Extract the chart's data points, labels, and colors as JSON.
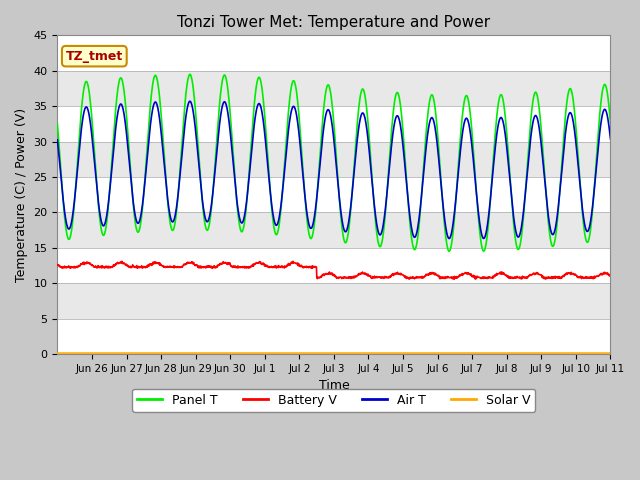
{
  "title": "Tonzi Tower Met: Temperature and Power",
  "xlabel": "Time",
  "ylabel": "Temperature (C) / Power (V)",
  "ylim": [
    0,
    45
  ],
  "label_box_text": "TZ_tmet",
  "legend": [
    "Panel T",
    "Battery V",
    "Air T",
    "Solar V"
  ],
  "legend_colors": [
    "#00ee00",
    "#ff0000",
    "#0000cc",
    "#ffaa00"
  ],
  "xtick_labels": [
    "Jun 26",
    "Jun 27",
    "Jun 28",
    "Jun 29",
    "Jun 30",
    "Jul 1",
    "Jul 2",
    "Jul 3",
    "Jul 4",
    "Jul 5",
    "Jul 6",
    "Jul 7",
    "Jul 8",
    "Jul 9",
    "Jul 10",
    "Jul 11"
  ],
  "ytick_values": [
    0,
    5,
    10,
    15,
    20,
    25,
    30,
    35,
    40,
    45
  ],
  "fig_facecolor": "#c8c8c8",
  "ax_facecolor": "#e0e0e0",
  "band_colors": [
    "#ffffff",
    "#e8e8e8"
  ]
}
